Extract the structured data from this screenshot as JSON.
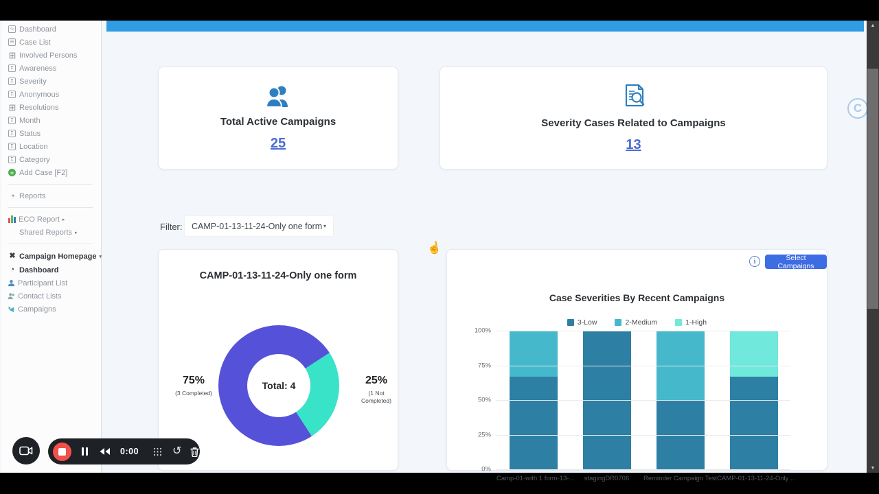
{
  "sidebar": {
    "items": [
      {
        "label": "Dashboard",
        "icon": "line-chart"
      },
      {
        "label": "Case List",
        "icon": "document-list"
      },
      {
        "label": "Involved Persons",
        "icon": "table-grid"
      },
      {
        "label": "Awareness",
        "icon": "sigma"
      },
      {
        "label": "Severity",
        "icon": "sigma"
      },
      {
        "label": "Anonymous",
        "icon": "sigma"
      },
      {
        "label": "Resolutions",
        "icon": "table-grid"
      },
      {
        "label": "Month",
        "icon": "sigma"
      },
      {
        "label": "Status",
        "icon": "sigma"
      },
      {
        "label": "Location",
        "icon": "sigma"
      },
      {
        "label": "Category",
        "icon": "sigma"
      },
      {
        "label": "Add Case [F2]",
        "icon": "plus-circle"
      },
      {
        "label": "Reports",
        "icon": "pie-chart"
      },
      {
        "label": "ECO Report",
        "icon": "bar-chart",
        "suffix": "▸"
      },
      {
        "label": "Shared Reports",
        "icon": "none",
        "suffix": "▸"
      },
      {
        "label": "Campaign Homepage",
        "icon": "shuffle",
        "suffix": "▾"
      },
      {
        "label": "Dashboard",
        "icon": "gauge"
      },
      {
        "label": "Participant List",
        "icon": "person"
      },
      {
        "label": "Contact Lists",
        "icon": "contacts"
      },
      {
        "label": "Campaigns",
        "icon": "campaign"
      }
    ],
    "glyphs": {
      "line-chart": "∿",
      "document-list": "☰",
      "table-grid": "⊞",
      "sigma": "Σ",
      "pie-chart": "◔",
      "shuffle": "✖",
      "gauge": "◔"
    }
  },
  "stats": [
    {
      "label": "Total Active Campaigns",
      "value": "25"
    },
    {
      "label": "Severity Cases Related to Campaigns",
      "value": "13"
    }
  ],
  "filter": {
    "label": "Filter:",
    "value": "CAMP-01-13-11-24-Only one form",
    "caret": "▾"
  },
  "bar_card": {
    "select_button": "Select Campaigns",
    "info": "i"
  },
  "recorder": {
    "time": "0:00"
  },
  "watermark": {
    "letter": "C"
  },
  "cursor_glyph": "☝",
  "scroll": {
    "up": "▲",
    "down": "▼"
  },
  "colors": {
    "header_blue": "#309de2",
    "link_blue": "#4b6bd5",
    "button_blue": "#3e6ce2",
    "donut_completed": "#5552d9",
    "donut_not_completed": "#38e3c8",
    "sev_low": "#2d7fa4",
    "sev_medium": "#45b9cb",
    "sev_high": "#70e8dc",
    "record_red": "#f2504a",
    "stat_icon_blue": "#2e7fc2"
  },
  "chart_data": [
    {
      "type": "pie",
      "donut": true,
      "title": "CAMP-01-13-11-24-Only one form",
      "center_label": "Total: 4",
      "start_angle_deg": 57,
      "slices": [
        {
          "label": "Not Completed",
          "count": 1,
          "pct": 25,
          "color": "#38e3c8",
          "annotation": "25%",
          "sub_line1": "(1 Not",
          "sub_line2": "Completed)"
        },
        {
          "label": "Completed",
          "count": 3,
          "pct": 75,
          "color": "#5552d9",
          "annotation": "75%",
          "sub_line1": "(3 Completed)",
          "sub_line2": ""
        }
      ]
    },
    {
      "type": "bar",
      "stacked": true,
      "title": "Case Severities By Recent Campaigns",
      "categories": [
        "Camp-01-with 1 form-13-...",
        "stagingDR0706",
        "Reminder Campaign Test",
        "CAMP-01-13-11-24-Only ..."
      ],
      "series": [
        {
          "name": "3-Low",
          "color": "#2d7fa4",
          "values": [
            67,
            100,
            50,
            67
          ]
        },
        {
          "name": "2-Medium",
          "color": "#45b9cb",
          "values": [
            33,
            0,
            50,
            0
          ]
        },
        {
          "name": "1-High",
          "color": "#70e8dc",
          "values": [
            0,
            0,
            0,
            33
          ]
        }
      ],
      "yticks": [
        "100%",
        "75%",
        "50%",
        "25%",
        "0%"
      ],
      "ylim": [
        0,
        100
      ],
      "grid": true,
      "legend_position": "top"
    }
  ]
}
